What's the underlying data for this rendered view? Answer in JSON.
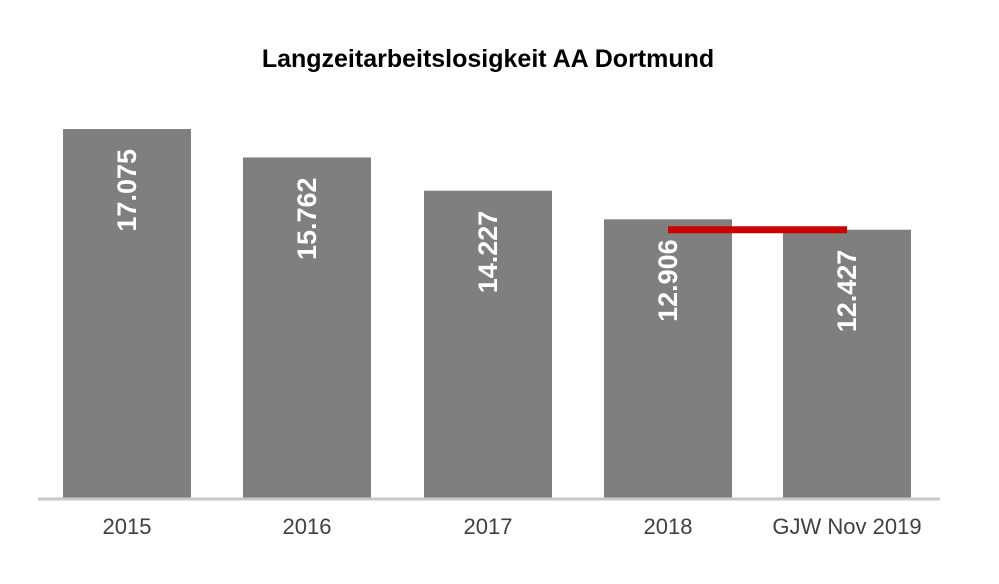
{
  "chart_data": {
    "type": "bar",
    "title": "Langzeitarbeitslosigkeit AA Dortmund",
    "categories": [
      "2015",
      "2016",
      "2017",
      "2018",
      "GJW Nov 2019"
    ],
    "values": [
      17075,
      15762,
      14227,
      12906,
      12427
    ],
    "data_labels": [
      "17.075",
      "15.762",
      "14.227",
      "12.906",
      "12.427"
    ],
    "ylim": [
      0,
      17075
    ],
    "grid": false,
    "bar_color": "#7f7f7f",
    "axis_color": "#c8c8c8",
    "reference_line": {
      "from_category": "2018",
      "to_category": "GJW Nov 2019",
      "value": 12427,
      "color": "#cc0000"
    }
  }
}
